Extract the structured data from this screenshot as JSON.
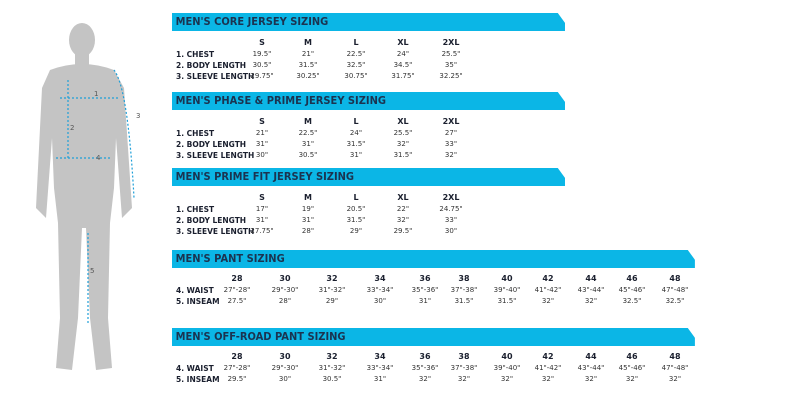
{
  "figure": {
    "labels": [
      "1",
      "2",
      "3",
      "4",
      "5"
    ],
    "color": "#bfbfbf",
    "measure_color": "#1e9fd8"
  },
  "tables": [
    {
      "title": "MEN'S CORE JERSEY SIZING",
      "sizes": [
        "S",
        "M",
        "L",
        "XL",
        "2XL"
      ],
      "rows": [
        {
          "label": "1. CHEST",
          "values": [
            "19.5\"",
            "21\"",
            "22.5\"",
            "24\"",
            "25.5\""
          ]
        },
        {
          "label": "2. BODY LENGTH",
          "values": [
            "30.5\"",
            "31.5\"",
            "32.5\"",
            "34.5\"",
            "35\""
          ]
        },
        {
          "label": "3. SLEEVE LENGTH",
          "values": [
            "29.75\"",
            "30.25\"",
            "30.75\"",
            "31.75\"",
            "32.25\""
          ]
        }
      ]
    },
    {
      "title": "MEN'S PHASE & PRIME JERSEY SIZING",
      "sizes": [
        "S",
        "M",
        "L",
        "XL",
        "2XL"
      ],
      "rows": [
        {
          "label": "1. CHEST",
          "values": [
            "21\"",
            "22.5\"",
            "24\"",
            "25.5\"",
            "27\""
          ]
        },
        {
          "label": "2. BODY LENGTH",
          "values": [
            "31\"",
            "31\"",
            "31.5\"",
            "32\"",
            "33\""
          ]
        },
        {
          "label": "3. SLEEVE LENGTH",
          "values": [
            "30\"",
            "30.5\"",
            "31\"",
            "31.5\"",
            "32\""
          ]
        }
      ]
    },
    {
      "title": "MEN'S PRIME FIT JERSEY SIZING",
      "sizes": [
        "S",
        "M",
        "L",
        "XL",
        "2XL"
      ],
      "rows": [
        {
          "label": "1. CHEST",
          "values": [
            "17\"",
            "19\"",
            "20.5\"",
            "22\"",
            "24.75\""
          ]
        },
        {
          "label": "2. BODY LENGTH",
          "values": [
            "31\"",
            "31\"",
            "31.5\"",
            "32\"",
            "33\""
          ]
        },
        {
          "label": "3. SLEEVE LENGTH",
          "values": [
            "27.75\"",
            "28\"",
            "29\"",
            "29.5\"",
            "30\""
          ]
        }
      ]
    },
    {
      "title": "MEN'S PANT SIZING",
      "sizes": [
        "28",
        "30",
        "32",
        "34",
        "36",
        "38",
        "40",
        "42",
        "44",
        "46",
        "48"
      ],
      "rows": [
        {
          "label": "4. WAIST",
          "values": [
            "27\"-28\"",
            "29\"-30\"",
            "31\"-32\"",
            "33\"-34\"",
            "35\"-36\"",
            "37\"-38\"",
            "39\"-40\"",
            "41\"-42\"",
            "43\"-44\"",
            "45\"-46\"",
            "47\"-48\""
          ]
        },
        {
          "label": "5. INSEAM",
          "values": [
            "27.5\"",
            "28\"",
            "29\"",
            "30\"",
            "31\"",
            "31.5\"",
            "31.5\"",
            "32\"",
            "32\"",
            "32.5\"",
            "32.5\""
          ]
        }
      ]
    },
    {
      "title": "MEN'S OFF-ROAD PANT SIZING",
      "sizes": [
        "28",
        "30",
        "32",
        "34",
        "36",
        "38",
        "40",
        "42",
        "44",
        "46",
        "48"
      ],
      "rows": [
        {
          "label": "4. WAIST",
          "values": [
            "27\"-28\"",
            "29\"-30\"",
            "31\"-32\"",
            "33\"-34\"",
            "35\"-36\"",
            "37\"-38\"",
            "39\"-40\"",
            "41\"-42\"",
            "43\"-44\"",
            "45\"-46\"",
            "47\"-48\""
          ]
        },
        {
          "label": "5. INSEAM",
          "values": [
            "29.5\"",
            "30\"",
            "30.5\"",
            "31\"",
            "32\"",
            "32\"",
            "32\"",
            "32\"",
            "32\"",
            "32\"",
            "32\""
          ]
        }
      ]
    }
  ]
}
